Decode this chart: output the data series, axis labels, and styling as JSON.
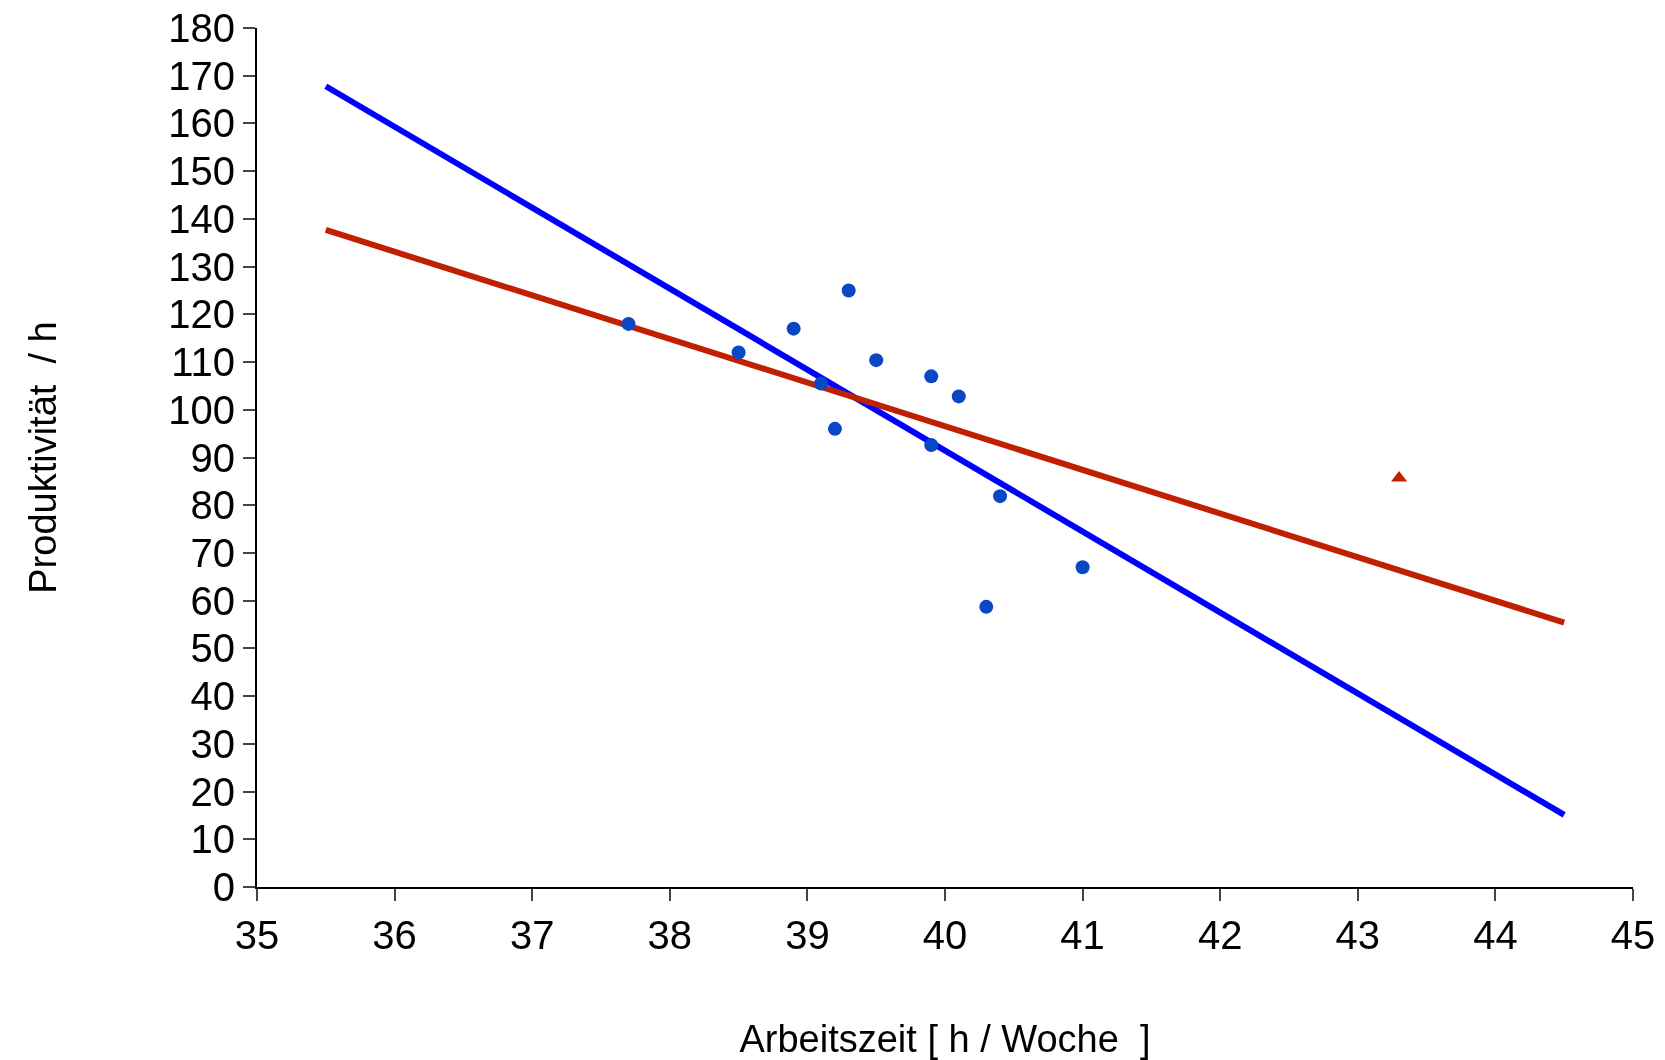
{
  "chart_data": {
    "type": "scatter",
    "xlabel": "Arbeitszeit [ h / Woche  ]",
    "ylabel": "Produktivität  / h",
    "xlim": [
      35,
      45
    ],
    "xticks": [
      35,
      36,
      37,
      38,
      39,
      40,
      41,
      42,
      43,
      44,
      45
    ],
    "ylim": [
      0,
      180
    ],
    "yticks": [
      0,
      10,
      20,
      30,
      40,
      50,
      60,
      70,
      80,
      90,
      100,
      110,
      120,
      130,
      140,
      150,
      160,
      170,
      180
    ],
    "series": [
      {
        "type": "line",
        "color": "#0000ff",
        "x": [
          35.5,
          44.5
        ],
        "values": [
          167.8,
          15.1
        ],
        "marker": "none"
      },
      {
        "type": "line",
        "color": "#c02000",
        "x": [
          35.5,
          44.5
        ],
        "values": [
          137.7,
          55.4
        ],
        "marker": "none"
      },
      {
        "color": "#0a47c4",
        "marker": "circle",
        "x": [
          37.7,
          38.5,
          38.9,
          39.1,
          39.2,
          39.3,
          39.5,
          39.9,
          39.9,
          40.1,
          40.3,
          40.4,
          41.0
        ],
        "values": [
          118,
          112,
          117,
          105.5,
          96,
          125,
          110.4,
          107,
          92.6,
          102.8,
          58.7,
          81.9,
          67
        ]
      },
      {
        "color": "#c02000",
        "marker": "triangle",
        "x": [
          43.3
        ],
        "values": [
          85.7
        ]
      }
    ]
  }
}
